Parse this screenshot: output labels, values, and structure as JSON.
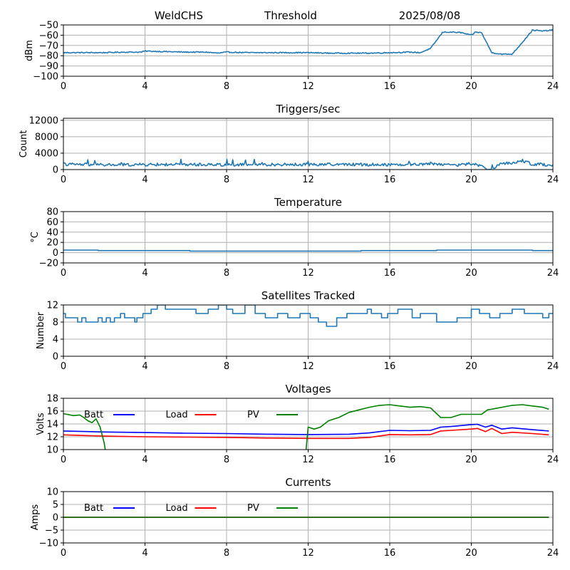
{
  "header": {
    "station": "WeldCHS",
    "threshold": "Threshold",
    "date": "2025/08/08"
  },
  "chart_data": [
    {
      "id": "noise",
      "type": "line",
      "title": "",
      "ylabel": "dBm",
      "xlim": [
        0,
        24
      ],
      "ylim": [
        -100,
        -50
      ],
      "xticks": [
        0,
        4,
        8,
        12,
        16,
        20,
        24
      ],
      "yticks": [
        -100,
        -90,
        -80,
        -70,
        -60,
        -50
      ],
      "grid": true,
      "series": [
        {
          "color": "#1f77b4",
          "noise": 0.5,
          "x": [
            0,
            1,
            2,
            3,
            3.8,
            4,
            5,
            6,
            7,
            7.6,
            8,
            9,
            10,
            11,
            12,
            13,
            14,
            15,
            16,
            17,
            17.5,
            18,
            18.3,
            18.6,
            19,
            19.5,
            20,
            20.2,
            20.5,
            21,
            21.5,
            22,
            22.5,
            23,
            23.5,
            24
          ],
          "y": [
            -77,
            -77,
            -77,
            -76.5,
            -76.5,
            -75.5,
            -76,
            -76.5,
            -76.5,
            -77.5,
            -76.5,
            -77,
            -77,
            -77,
            -77,
            -77.5,
            -77.5,
            -77.5,
            -77,
            -76.5,
            -77,
            -73,
            -65,
            -57,
            -57,
            -57.5,
            -60,
            -57,
            -57.5,
            -77,
            -78.5,
            -78.5,
            -67,
            -55,
            -56,
            -55
          ]
        }
      ]
    },
    {
      "id": "triggers",
      "type": "line",
      "title": "Triggers/sec",
      "ylabel": "Count",
      "xlim": [
        0,
        24
      ],
      "ylim": [
        0,
        12500
      ],
      "xticks": [
        0,
        4,
        8,
        12,
        16,
        20,
        24
      ],
      "yticks": [
        0,
        4000,
        8000,
        12000
      ],
      "grid": true,
      "series": [
        {
          "color": "#1f77b4",
          "noise": 350,
          "x": [
            0,
            2,
            4,
            6,
            8,
            10,
            12,
            14,
            16,
            17.5,
            18,
            18.5,
            19,
            19.5,
            20,
            20.5,
            20.8,
            21,
            21.5,
            22,
            22.5,
            23,
            24
          ],
          "y": [
            1300,
            1150,
            1200,
            1250,
            1200,
            1200,
            1250,
            1250,
            1200,
            1300,
            1500,
            1300,
            1200,
            1100,
            1500,
            800,
            200,
            0,
            1600,
            1500,
            2200,
            1300,
            1200
          ]
        }
      ]
    },
    {
      "id": "temperature",
      "type": "line",
      "title": "Temperature",
      "ylabel": "°C",
      "xlim": [
        0,
        24
      ],
      "ylim": [
        -20,
        80
      ],
      "xticks": [
        0,
        4,
        8,
        12,
        16,
        20,
        24
      ],
      "yticks": [
        -20,
        0,
        20,
        40,
        60,
        80
      ],
      "grid": true,
      "series": [
        {
          "color": "#1f77b4",
          "noise": 0,
          "step": true,
          "x": [
            0,
            1.7,
            6.2,
            14.6,
            18.3,
            23,
            24
          ],
          "y": [
            5,
            4,
            3,
            4,
            5,
            4,
            4
          ]
        }
      ]
    },
    {
      "id": "satellites",
      "type": "line",
      "title": "Satellites Tracked",
      "ylabel": "Number",
      "xlim": [
        0,
        24
      ],
      "ylim": [
        0,
        12
      ],
      "xticks": [
        0,
        4,
        8,
        12,
        16,
        20,
        24
      ],
      "yticks": [
        0,
        4,
        8,
        12
      ],
      "grid": true,
      "series": [
        {
          "color": "#1f77b4",
          "noise": 0,
          "step": true,
          "x": [
            0,
            0.1,
            0.7,
            0.9,
            1.1,
            1.7,
            1.9,
            2.1,
            2.3,
            2.5,
            2.8,
            3.0,
            3.5,
            3.6,
            3.9,
            4.3,
            4.6,
            5.0,
            5.8,
            6.5,
            7.1,
            7.6,
            8.0,
            8.3,
            8.9,
            9.4,
            9.9,
            10.5,
            11.0,
            11.6,
            12.1,
            12.5,
            12.9,
            13.4,
            13.9,
            14.9,
            15.1,
            15.6,
            15.9,
            16.4,
            17.1,
            17.5,
            18.3,
            19.3,
            20.0,
            20.4,
            20.9,
            21.4,
            22.0,
            22.6,
            23.0,
            23.5,
            23.8,
            24
          ],
          "y": [
            10,
            9,
            8,
            9,
            8,
            9,
            8,
            9,
            8,
            9,
            10,
            9,
            8,
            9,
            10,
            11,
            12,
            11,
            11,
            10,
            11,
            12,
            11,
            10,
            12,
            10,
            9,
            10,
            9,
            10,
            9,
            8,
            7,
            9,
            10,
            11,
            10,
            9,
            10,
            11,
            9,
            10,
            8,
            9,
            11,
            10,
            9,
            10,
            11,
            10,
            10,
            9,
            10,
            10
          ]
        }
      ]
    },
    {
      "id": "voltages",
      "type": "line",
      "title": "Voltages",
      "ylabel": "Volts",
      "xlim": [
        0,
        24
      ],
      "ylim": [
        10,
        18
      ],
      "xticks": [
        0,
        4,
        8,
        12,
        16,
        20,
        24
      ],
      "yticks": [
        10,
        12,
        14,
        16,
        18
      ],
      "grid": true,
      "legend": [
        {
          "label": "Batt",
          "color": "#0000ff"
        },
        {
          "label": "Load",
          "color": "#ff0000"
        },
        {
          "label": "PV",
          "color": "#008000"
        }
      ],
      "series": [
        {
          "name": "Batt",
          "color": "#0000ff",
          "noise": 0,
          "x": [
            0,
            2,
            4,
            6,
            8,
            10,
            12,
            14,
            15,
            16,
            17,
            18,
            18.5,
            19,
            20,
            20.3,
            20.7,
            21,
            21.5,
            22,
            23,
            23.8
          ],
          "y": [
            12.9,
            12.75,
            12.65,
            12.55,
            12.5,
            12.4,
            12.35,
            12.4,
            12.6,
            13.0,
            12.95,
            13.0,
            13.5,
            13.6,
            13.9,
            13.95,
            13.5,
            13.8,
            13.2,
            13.4,
            13.1,
            12.9
          ]
        },
        {
          "name": "Load",
          "color": "#ff0000",
          "noise": 0,
          "x": [
            0,
            2,
            4,
            6,
            8,
            10,
            12,
            14,
            15,
            16,
            17,
            18,
            18.5,
            19,
            20,
            20.3,
            20.7,
            21,
            21.5,
            22,
            23,
            23.8
          ],
          "y": [
            12.3,
            12.1,
            12.0,
            11.95,
            11.9,
            11.8,
            11.75,
            11.75,
            11.9,
            12.35,
            12.3,
            12.35,
            12.9,
            13.0,
            13.2,
            13.3,
            12.8,
            13.3,
            12.5,
            12.7,
            12.5,
            12.3
          ]
        },
        {
          "name": "PV",
          "color": "#008000",
          "noise": 0,
          "x": [
            0,
            0.5,
            0.8,
            1.0,
            1.2,
            1.4,
            1.6,
            1.8,
            2.0,
            2.05
          ],
          "y": [
            15.6,
            15.3,
            15.4,
            15.0,
            14.5,
            14.2,
            14.8,
            13.5,
            11.0,
            10.0
          ]
        },
        {
          "name": "PV",
          "color": "#008000",
          "noise": 0,
          "x": [
            11.9,
            12.0,
            12.3,
            12.6,
            13,
            13.5,
            14,
            14.5,
            15,
            15.5,
            16,
            16.5,
            17,
            17.5,
            18,
            18.2,
            18.5,
            19,
            19.5,
            20,
            20.5,
            20.8,
            21,
            21.5,
            22,
            22.5,
            23,
            23.5,
            23.8
          ],
          "y": [
            10.0,
            13.5,
            13.2,
            13.5,
            14.5,
            15.0,
            15.8,
            16.2,
            16.6,
            16.9,
            17.0,
            16.8,
            16.6,
            16.7,
            16.5,
            15.9,
            15.0,
            15.0,
            15.5,
            15.5,
            15.5,
            16.2,
            16.3,
            16.6,
            16.9,
            17.0,
            16.8,
            16.6,
            16.3
          ]
        }
      ]
    },
    {
      "id": "currents",
      "type": "line",
      "title": "Currents",
      "ylabel": "Amps",
      "xlim": [
        0,
        24
      ],
      "ylim": [
        -10,
        10
      ],
      "xticks": [
        0,
        4,
        8,
        12,
        16,
        20,
        24
      ],
      "yticks": [
        -10,
        -5,
        0,
        5,
        10
      ],
      "grid": true,
      "legend": [
        {
          "label": "Batt",
          "color": "#0000ff"
        },
        {
          "label": "Load",
          "color": "#ff0000"
        },
        {
          "label": "PV",
          "color": "#008000"
        }
      ],
      "series": [
        {
          "name": "Batt",
          "color": "#0000ff",
          "noise": 0,
          "x": [
            0,
            23.8
          ],
          "y": [
            0,
            0
          ]
        },
        {
          "name": "Load",
          "color": "#ff0000",
          "noise": 0,
          "x": [
            0,
            23.8
          ],
          "y": [
            0,
            0
          ]
        },
        {
          "name": "PV",
          "color": "#008000",
          "noise": 0,
          "x": [
            0,
            23.8
          ],
          "y": [
            0,
            0
          ]
        }
      ]
    }
  ]
}
